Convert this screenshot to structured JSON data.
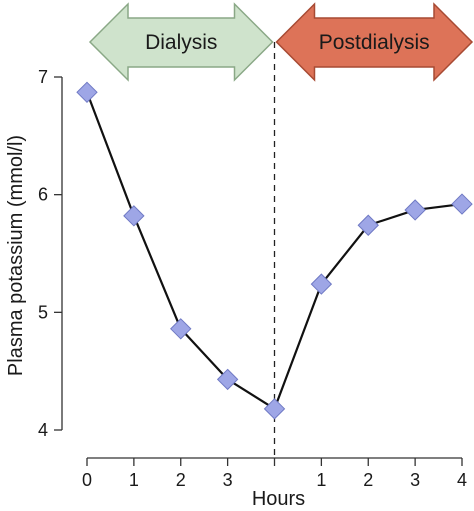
{
  "chart_data": {
    "type": "line",
    "ylabel": "Plasma potassium (mmol/l)",
    "xlabel": "Hours",
    "ylim": [
      4,
      7
    ],
    "yticks": [
      4,
      5,
      6,
      7
    ],
    "x_positions": [
      0,
      1,
      2,
      3,
      4,
      5,
      6,
      7,
      8
    ],
    "xtick_labels": [
      "0",
      "1",
      "2",
      "3",
      "",
      "1",
      "2",
      "3",
      "4"
    ],
    "series": [
      {
        "marker": "diamond",
        "values": [
          6.87,
          5.82,
          4.86,
          4.43,
          4.18,
          5.24,
          5.74,
          5.87,
          5.92
        ]
      }
    ],
    "phases": [
      {
        "label": "Dialysis",
        "color": "#cfe3cc",
        "border": "#8aa886",
        "span": [
          0,
          4
        ]
      },
      {
        "label": "Postdialysis",
        "color": "#dd7358",
        "border": "#a74a33",
        "span": [
          4,
          8
        ]
      }
    ],
    "divider_at": 4,
    "colors": {
      "line": "#111111",
      "marker": "#9ea6e6",
      "marker_edge": "#6f79c4",
      "axis": "#333333"
    }
  }
}
